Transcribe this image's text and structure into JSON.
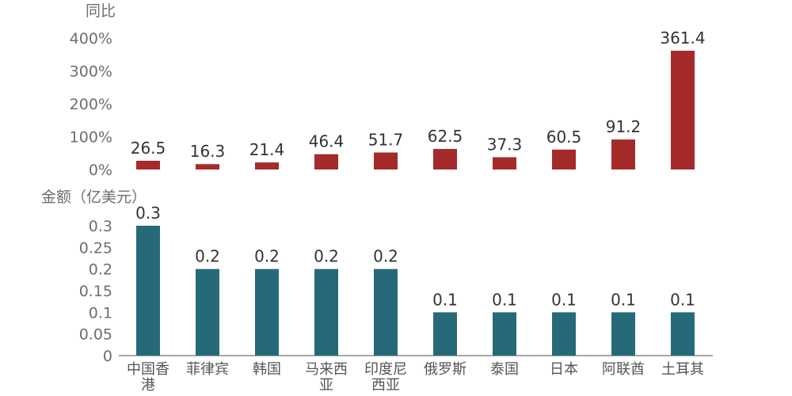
{
  "chart_data": [
    {
      "type": "bar",
      "ylabel": "同比",
      "categories": [
        "中国香港",
        "菲律宾",
        "韩国",
        "马来西亚",
        "印度尼西亚",
        "俄罗斯",
        "泰国",
        "日本",
        "阿联酋",
        "土耳其"
      ],
      "values": [
        26.5,
        16.3,
        21.4,
        46.4,
        51.7,
        62.5,
        37.3,
        60.5,
        91.2,
        361.4
      ],
      "value_labels": [
        "26.5",
        "16.3",
        "21.4",
        "46.4",
        "51.7",
        "62.5",
        "37.3",
        "60.5",
        "91.2",
        "361.4"
      ],
      "yticks": [
        "400%",
        "300%",
        "200%",
        "100%",
        "0%"
      ],
      "ylim": [
        0,
        400
      ],
      "color": "#a52a2a",
      "grid": false
    },
    {
      "type": "bar",
      "ylabel": "金额（亿美元）",
      "categories": [
        "中国香港",
        "菲律宾",
        "韩国",
        "马来西亚",
        "印度尼西亚",
        "俄罗斯",
        "泰国",
        "日本",
        "阿联酋",
        "土耳其"
      ],
      "values": [
        0.3,
        0.2,
        0.2,
        0.2,
        0.2,
        0.1,
        0.1,
        0.1,
        0.1,
        0.1
      ],
      "value_labels": [
        "0.3",
        "0.2",
        "0.2",
        "0.2",
        "0.2",
        "0.1",
        "0.1",
        "0.1",
        "0.1",
        "0.1"
      ],
      "yticks": [
        "0.3",
        "0.25",
        "0.2",
        "0.15",
        "0.1",
        "0.05",
        "0"
      ],
      "ylim": [
        0,
        0.3
      ],
      "color": "#266a7a",
      "grid": false
    }
  ],
  "x_axis": {
    "labels": [
      [
        "中国香",
        "港"
      ],
      [
        "菲律宾"
      ],
      [
        "韩国"
      ],
      [
        "马来西",
        "亚"
      ],
      [
        "印度尼",
        "西亚"
      ],
      [
        "俄罗斯"
      ],
      [
        "泰国"
      ],
      [
        "日本"
      ],
      [
        "阿联酋"
      ],
      [
        "土耳其"
      ]
    ]
  }
}
